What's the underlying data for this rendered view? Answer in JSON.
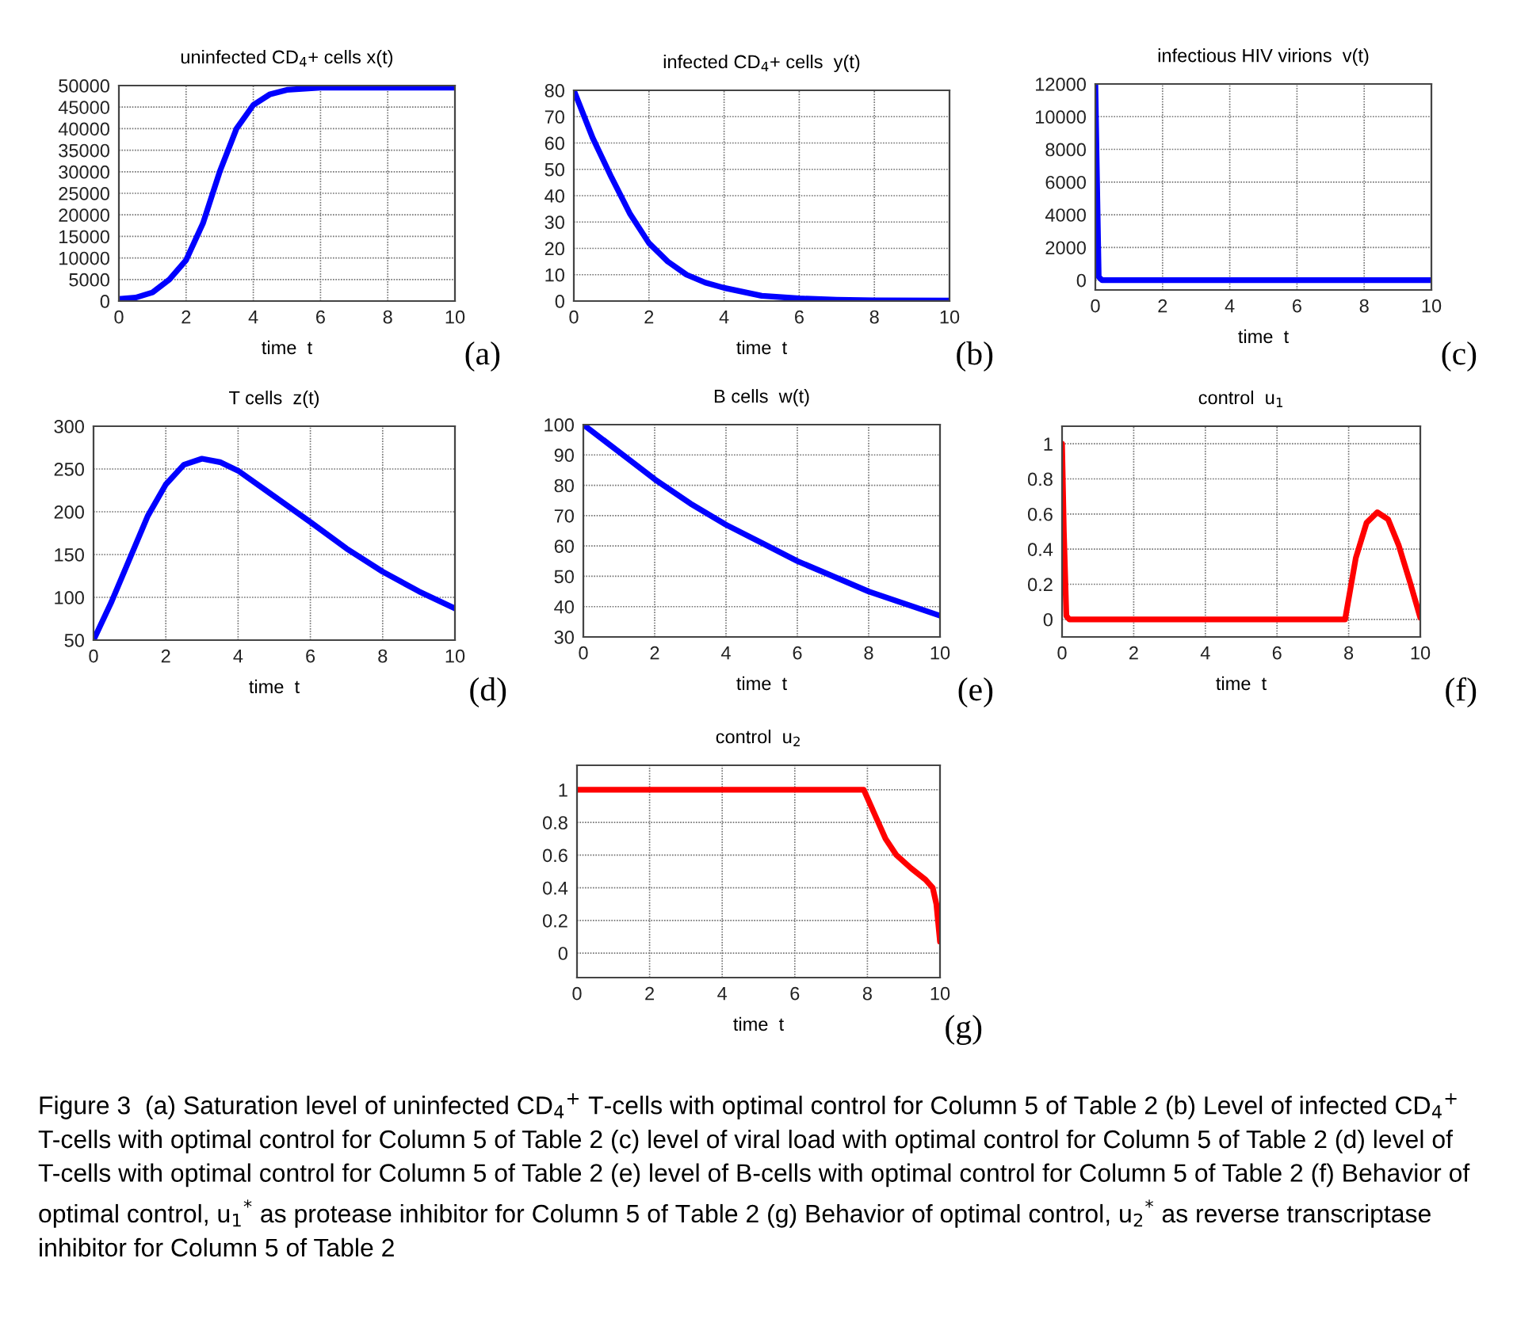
{
  "chart_data": [
    {
      "type": "line",
      "title": "uninfected CD$_{4}$+ cells x(t)",
      "xlabel": "time  t",
      "annotations": [
        "(a)"
      ],
      "xlim": [
        0,
        10
      ],
      "xticks": [
        0,
        2,
        4,
        6,
        8,
        10
      ],
      "ylim": [
        0,
        50000
      ],
      "yticks": [
        0,
        5000,
        10000,
        15000,
        20000,
        25000,
        30000,
        35000,
        40000,
        45000,
        50000
      ],
      "grid": true,
      "line_style": "solid",
      "marker": "none",
      "series": [
        {
          "color": "#0000ff",
          "x": [
            0,
            0.5,
            1,
            1.5,
            2,
            2.5,
            3,
            3.5,
            4,
            4.5,
            5,
            6,
            7,
            8,
            10
          ],
          "values": [
            500,
            800,
            2000,
            5000,
            9500,
            18000,
            30000,
            40000,
            45500,
            48000,
            49000,
            49500,
            49500,
            49500,
            49500
          ]
        }
      ]
    },
    {
      "type": "line",
      "title": "infected CD$_{4}$+ cells  y(t)",
      "xlabel": "time  t",
      "annotations": [
        "(b)"
      ],
      "xlim": [
        0,
        10
      ],
      "xticks": [
        0,
        2,
        4,
        6,
        8,
        10
      ],
      "ylim": [
        0,
        80
      ],
      "yticks": [
        0,
        10,
        20,
        30,
        40,
        50,
        60,
        70,
        80
      ],
      "grid": true,
      "line_style": "solid",
      "marker": "none",
      "series": [
        {
          "color": "#0000ff",
          "x": [
            0,
            0.5,
            1,
            1.5,
            2,
            2.5,
            3,
            3.5,
            4,
            5,
            6,
            7,
            8,
            10
          ],
          "values": [
            80,
            62,
            47,
            33,
            22,
            15,
            10,
            7,
            5,
            2,
            1,
            0.5,
            0.3,
            0.2
          ]
        }
      ]
    },
    {
      "type": "line",
      "title": "infectious HIV virions  v(t)",
      "xlabel": "time  t",
      "annotations": [
        "(c)"
      ],
      "xlim": [
        0,
        10
      ],
      "xticks": [
        0,
        2,
        4,
        6,
        8,
        10
      ],
      "ylim": [
        -600,
        12000
      ],
      "yticks": [
        0,
        2000,
        4000,
        6000,
        8000,
        10000,
        12000
      ],
      "grid": true,
      "line_style": "solid",
      "marker": "none",
      "series": [
        {
          "color": "#0000ff",
          "x": [
            0,
            0.05,
            0.1,
            0.2,
            10
          ],
          "values": [
            12000,
            6000,
            200,
            0,
            0
          ]
        }
      ]
    },
    {
      "type": "line",
      "title": "T cells  z(t)",
      "xlabel": "time  t",
      "annotations": [
        "(d)"
      ],
      "xlim": [
        0,
        10
      ],
      "xticks": [
        0,
        2,
        4,
        6,
        8,
        10
      ],
      "ylim": [
        50,
        300
      ],
      "yticks": [
        50,
        100,
        150,
        200,
        250,
        300
      ],
      "grid": true,
      "line_style": "solid",
      "marker": "none",
      "series": [
        {
          "color": "#0000ff",
          "x": [
            0,
            0.5,
            1,
            1.5,
            2,
            2.5,
            3,
            3.5,
            4,
            5,
            6,
            7,
            8,
            9,
            10
          ],
          "values": [
            50,
            95,
            145,
            195,
            232,
            255,
            262,
            258,
            248,
            218,
            188,
            157,
            130,
            107,
            87
          ]
        }
      ]
    },
    {
      "type": "line",
      "title": "B cells  w(t)",
      "xlabel": "time  t",
      "annotations": [
        "(e)"
      ],
      "xlim": [
        0,
        10
      ],
      "xticks": [
        0,
        2,
        4,
        6,
        8,
        10
      ],
      "ylim": [
        30,
        100
      ],
      "yticks": [
        30,
        40,
        50,
        60,
        70,
        80,
        90,
        100
      ],
      "grid": true,
      "line_style": "solid",
      "marker": "none",
      "series": [
        {
          "color": "#0000ff",
          "x": [
            0,
            1,
            2,
            3,
            4,
            5,
            6,
            7,
            8,
            9,
            10
          ],
          "values": [
            100,
            91,
            82,
            74,
            67,
            61,
            55,
            50,
            45,
            41,
            37
          ]
        }
      ]
    },
    {
      "type": "line",
      "title": "control  u$_{1}$",
      "xlabel": "time  t",
      "annotations": [
        "(f)"
      ],
      "xlim": [
        0,
        10
      ],
      "xticks": [
        0,
        2,
        4,
        6,
        8,
        10
      ],
      "ylim": [
        -0.1,
        1.1
      ],
      "yticks": [
        0,
        0.2,
        0.4,
        0.6,
        0.8,
        1
      ],
      "grid": true,
      "line_style": "solid",
      "marker": "none",
      "series": [
        {
          "color": "#ff0000",
          "x": [
            0,
            0.05,
            0.12,
            0.2,
            7.9,
            8.2,
            8.5,
            8.8,
            9.1,
            9.4,
            9.7,
            10
          ],
          "values": [
            1,
            0.5,
            0.02,
            0,
            0,
            0.35,
            0.55,
            0.61,
            0.57,
            0.42,
            0.22,
            0.01
          ]
        }
      ]
    },
    {
      "type": "line",
      "title": "control  u$_{2}$",
      "xlabel": "time  t",
      "annotations": [
        "(g)",
        "Figure 3  (a) Saturation level of uninfected CD$_{4}$$^{+}$ T-cells with optimal control for Column 5 of Table 2 (b) Level of infected CD$_{4}$$^{+}$ T-cells with optimal control for Column 5 of Table 2 (c) level of viral load with optimal control for Column 5 of Table 2 (d) level of T-cells with optimal control for Column 5 of Table 2 (e) level of B-cells with optimal control for Column 5 of Table 2 (f) Behavior of optimal control, u$_{1}$$^{*}$ as protease inhibitor for Column 5 of Table 2 (g) Behavior of optimal control, u$_{2}$$^{*}$ as reverse transcriptase inhibitor for Column 5 of Table 2"
      ],
      "xlim": [
        0,
        10
      ],
      "xticks": [
        0,
        2,
        4,
        6,
        8,
        10
      ],
      "ylim": [
        -0.15,
        1.15
      ],
      "yticks": [
        0,
        0.2,
        0.4,
        0.6,
        0.8,
        1
      ],
      "grid": true,
      "line_style": "solid",
      "marker": "none",
      "series": [
        {
          "color": "#ff0000",
          "x": [
            0,
            7.9,
            8.2,
            8.5,
            8.8,
            9.2,
            9.6,
            9.8,
            9.9,
            10
          ],
          "values": [
            1,
            1,
            0.85,
            0.7,
            0.6,
            0.52,
            0.45,
            0.4,
            0.3,
            0.07
          ]
        }
      ]
    }
  ]
}
